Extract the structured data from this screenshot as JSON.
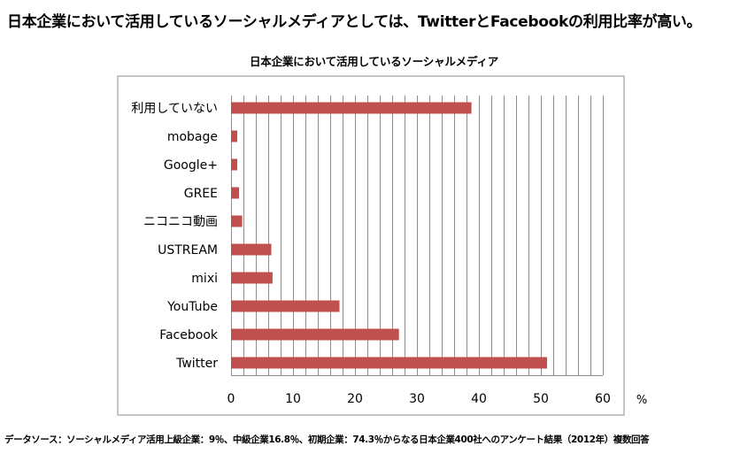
{
  "headline": "日本企業において活用しているソーシャルメディアとしては、TwitterとFacebookの利用比率が高い。",
  "footnote": "データソース：ソーシャルメディア活用上級企業：9％、中級企業16.8％、初期企業：74.3％からなる日本企業400社へのアンケート結果（2012年）複数回答",
  "colors": {
    "bar": "#c0504d",
    "grid": "#8c8c8c",
    "frame": "#8c8c8c"
  },
  "chart_data": {
    "type": "bar",
    "orientation": "horizontal",
    "title": "日本企業において活用しているソーシャルメディア",
    "xlabel": "",
    "ylabel": "",
    "unit_label": "%",
    "categories": [
      "利用していない",
      "mobage",
      "Google+",
      "GREE",
      "ニコニコ動画",
      "USTREAM",
      "mixi",
      "YouTube",
      "Facebook",
      "Twitter"
    ],
    "values": [
      38.8,
      1.0,
      1.0,
      1.3,
      1.8,
      6.5,
      6.7,
      17.5,
      27.1,
      51.0
    ],
    "xlim": [
      0,
      60
    ],
    "x_ticks": [
      "0",
      "10",
      "20",
      "30",
      "40",
      "50",
      "60"
    ],
    "grid": true,
    "legend": "none"
  }
}
